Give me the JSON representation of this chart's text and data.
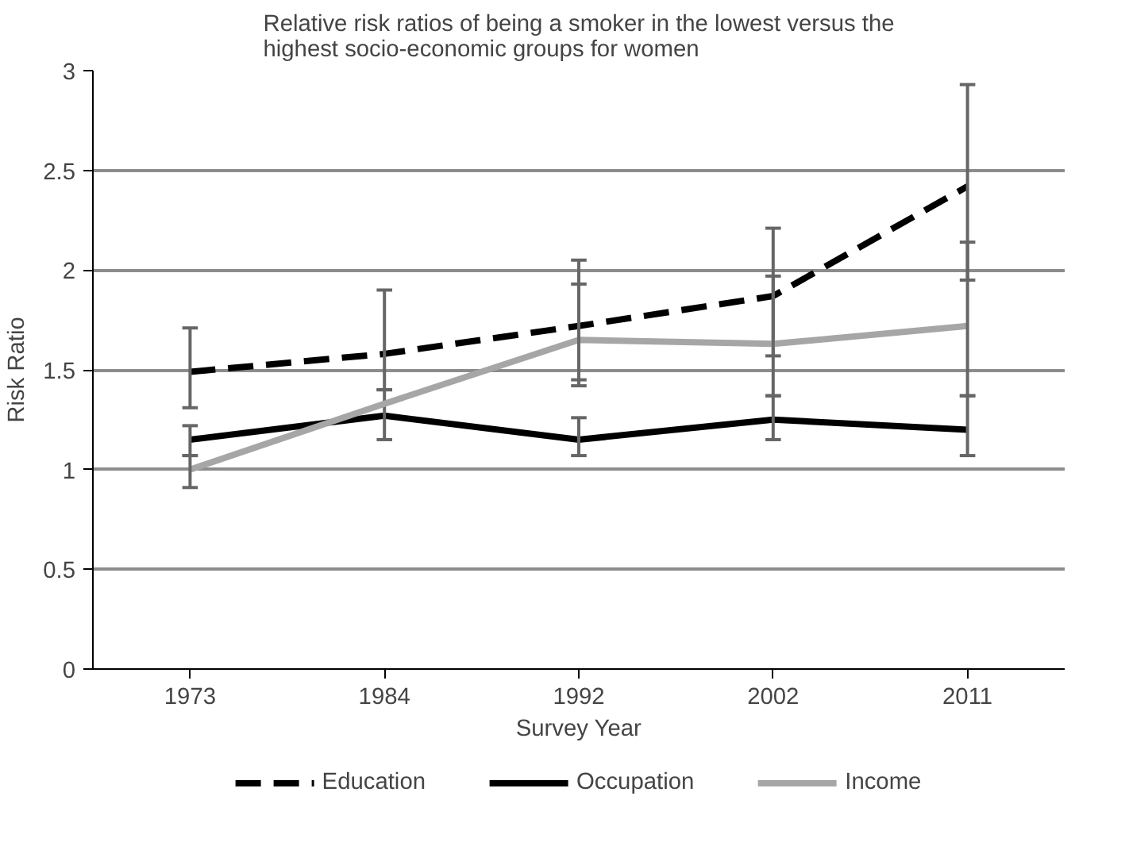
{
  "chart_data": {
    "type": "line",
    "title": "Relative risk ratios of being a smoker in the lowest versus the\nhighest socio-economic groups for women",
    "xlabel": "Survey Year",
    "ylabel": "Risk Ratio",
    "categories": [
      "1973",
      "1984",
      "1992",
      "2002",
      "2011"
    ],
    "series": [
      {
        "name": "Education",
        "color": "#000000",
        "line_style": "dashed",
        "values": [
          1.49,
          1.58,
          1.72,
          1.87,
          2.42
        ],
        "errors": [
          [
            1.31,
            1.71
          ],
          [
            1.4,
            1.9
          ],
          [
            1.45,
            2.05
          ],
          [
            1.57,
            2.21
          ],
          [
            1.95,
            2.93
          ]
        ]
      },
      {
        "name": "Occupation",
        "color": "#000000",
        "line_style": "solid",
        "values": [
          1.15,
          1.27,
          1.15,
          1.25,
          1.2
        ],
        "errors": [
          [
            1.07,
            1.22
          ],
          [
            1.15,
            1.4
          ],
          [
            1.07,
            1.26
          ],
          [
            1.15,
            1.37
          ],
          [
            1.07,
            1.37
          ]
        ]
      },
      {
        "name": "Income",
        "color": "#a6a6a6",
        "line_style": "solid",
        "values": [
          1.0,
          1.33,
          1.65,
          1.63,
          1.72
        ],
        "errors": [
          [
            0.91,
            1.07
          ],
          null,
          [
            1.42,
            1.93
          ],
          [
            1.37,
            1.97
          ],
          [
            1.37,
            2.14
          ]
        ]
      }
    ],
    "ylim": [
      0,
      3
    ],
    "yticks": [
      0,
      0.5,
      1,
      1.5,
      2,
      2.5,
      3
    ],
    "grid": "y",
    "legend": "bottom",
    "marker": "none"
  }
}
